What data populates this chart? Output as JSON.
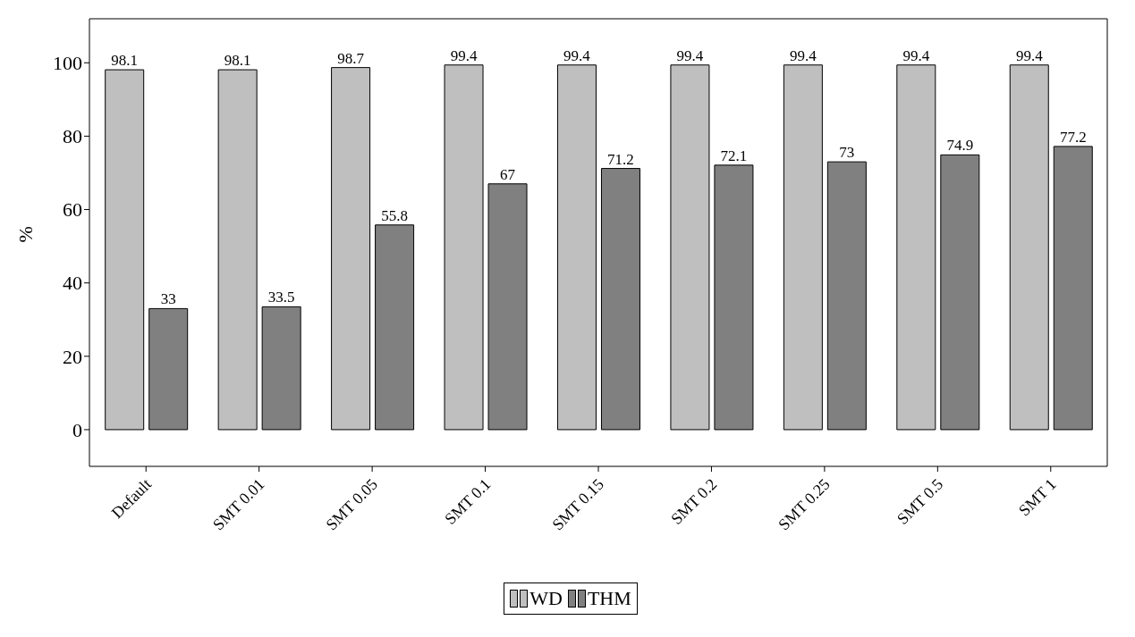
{
  "chart_data": {
    "type": "bar",
    "ylabel": "%",
    "categories": [
      "Default",
      "SMT 0.01",
      "SMT 0.05",
      "SMT 0.1",
      "SMT 0.15",
      "SMT 0.2",
      "SMT 0.25",
      "SMT 0.5",
      "SMT 1"
    ],
    "series": [
      {
        "name": "WD",
        "color": "#bfbfbf",
        "values": [
          98.1,
          98.1,
          98.7,
          99.4,
          99.4,
          99.4,
          99.4,
          99.4,
          99.4
        ]
      },
      {
        "name": "THM",
        "color": "#808080",
        "values": [
          33,
          33.5,
          55.8,
          67,
          71.2,
          72.1,
          73,
          74.9,
          77.2
        ]
      }
    ],
    "ylim": [
      -10,
      112
    ],
    "yticks": [
      0,
      20,
      40,
      60,
      80,
      100
    ],
    "legend": "bottom",
    "data_labels": true
  }
}
